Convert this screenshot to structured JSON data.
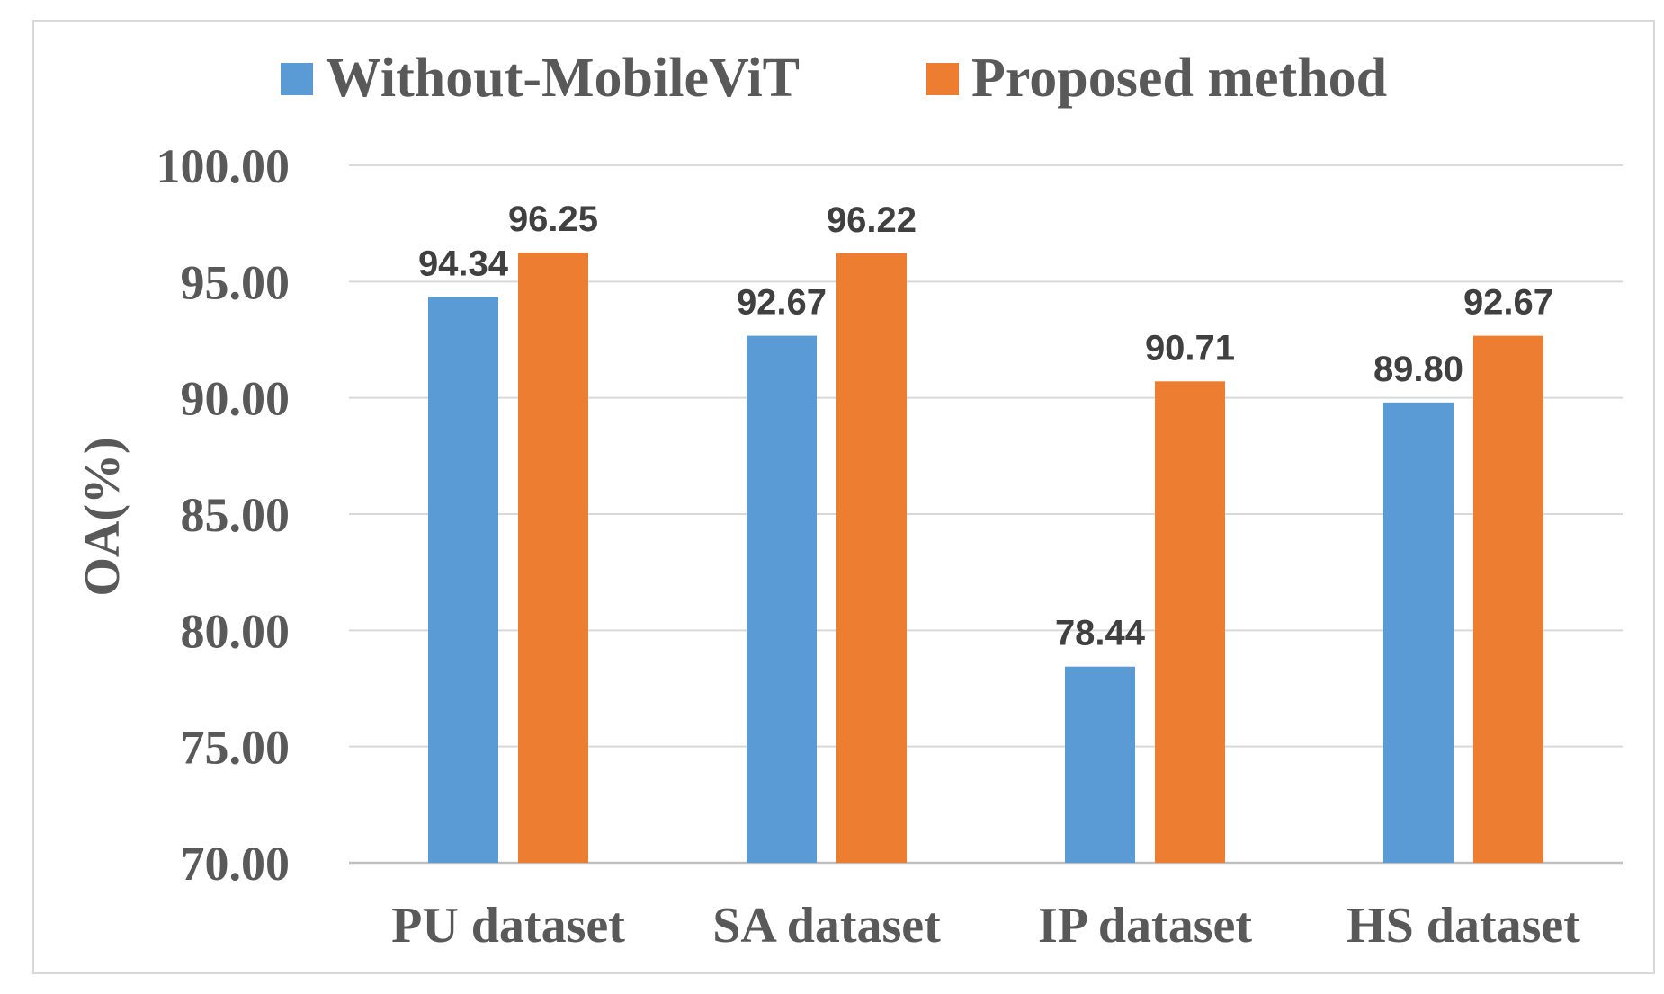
{
  "chart_data": {
    "type": "bar",
    "title": "",
    "xlabel": "",
    "ylabel": "OA(%)",
    "ylim": [
      70,
      100
    ],
    "yticks": [
      "70.00",
      "75.00",
      "80.00",
      "85.00",
      "90.00",
      "95.00",
      "100.00"
    ],
    "grid": true,
    "legend_position": "top-center",
    "categories": [
      "PU dataset",
      "SA dataset",
      "IP dataset",
      "HS dataset"
    ],
    "series": [
      {
        "name": "Without-MobileViT",
        "color": "#5b9bd5",
        "values": [
          94.34,
          92.67,
          78.44,
          89.8
        ],
        "labels": [
          "94.34",
          "92.67",
          "78.44",
          "89.80"
        ]
      },
      {
        "name": "Proposed method",
        "color": "#ed7d31",
        "values": [
          96.25,
          96.22,
          90.71,
          92.67
        ],
        "labels": [
          "96.25",
          "96.22",
          "90.71",
          "92.67"
        ]
      }
    ]
  }
}
